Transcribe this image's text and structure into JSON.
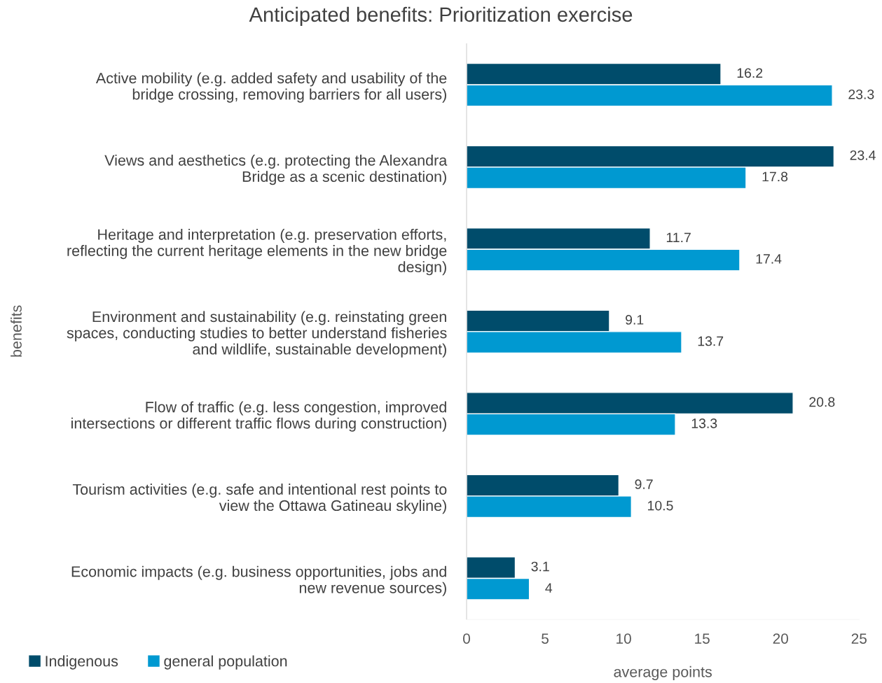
{
  "chart_data": {
    "type": "bar",
    "orientation": "horizontal",
    "title": "Anticipated benefits: Prioritization exercise",
    "xlabel": "average points",
    "ylabel": "benefits",
    "categories": [
      "Active mobility (e.g. added safety and usability of the\nbridge crossing, removing barriers for all users)",
      "Views and aesthetics (e.g. protecting the Alexandra\nBridge as a scenic destination)",
      "Heritage and interpretation (e.g. preservation efforts,\nreflecting the current heritage elements in the new bridge\ndesign)",
      "Environment and sustainability (e.g. reinstating green\nspaces, conducting studies to better understand fisheries\nand wildlife, sustainable development)",
      "Flow of traffic (e.g. less congestion, improved\nintersections or different traffic flows during construction)",
      "Tourism activities (e.g. safe and intentional rest points to\nview the Ottawa Gatineau skyline)",
      "Economic impacts (e.g. business opportunities, jobs and\nnew revenue sources)"
    ],
    "series": [
      {
        "name": "Indigenous",
        "color": "#004c6b",
        "values": [
          16.2,
          23.4,
          11.7,
          9.1,
          20.8,
          9.7,
          3.1
        ]
      },
      {
        "name": "general population",
        "color": "#0099d1",
        "values": [
          23.3,
          17.8,
          17.4,
          13.7,
          13.3,
          10.5,
          4
        ]
      }
    ],
    "xlim": [
      0,
      25
    ],
    "xticks": [
      0,
      5,
      10,
      15,
      20,
      25
    ],
    "grid": false,
    "legend": "bottom left",
    "data_labels": true
  }
}
